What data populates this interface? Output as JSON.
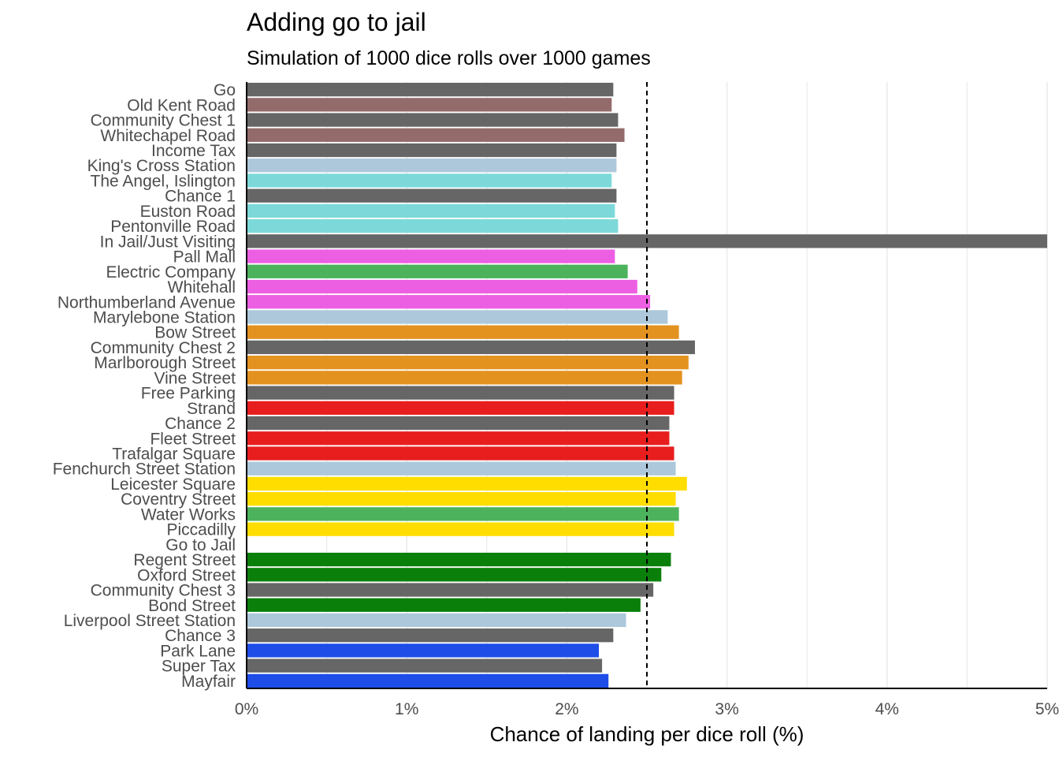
{
  "chart_data": {
    "type": "bar",
    "orientation": "horizontal",
    "title": "Adding go to jail",
    "subtitle": "Simulation of 1000 dice rolls over 1000 games",
    "xlabel": "Chance of landing per dice roll (%)",
    "ylabel": "",
    "xlim": [
      0,
      5
    ],
    "x_ticks": [
      "0%",
      "1%",
      "2%",
      "3%",
      "4%",
      "5%"
    ],
    "x_tick_values": [
      0,
      1,
      2,
      3,
      4,
      5
    ],
    "reference_line": {
      "value": 2.5,
      "style": "dashed"
    },
    "grid": "vertical",
    "legend": "none",
    "categories": [
      "Go",
      "Old Kent Road",
      "Community Chest 1",
      "Whitechapel Road",
      "Income Tax",
      "King's Cross Station",
      "The Angel, Islington",
      "Chance 1",
      "Euston Road",
      "Pentonville Road",
      "In Jail/Just Visiting",
      "Pall Mall",
      "Electric Company",
      "Whitehall",
      "Northumberland Avenue",
      "Marylebone Station",
      "Bow Street",
      "Community Chest 2",
      "Marlborough Street",
      "Vine Street",
      "Free Parking",
      "Strand",
      "Chance 2",
      "Fleet Street",
      "Trafalgar Square",
      "Fenchurch Street Station",
      "Leicester Square",
      "Coventry Street",
      "Water Works",
      "Piccadilly",
      "Go to Jail",
      "Regent Street",
      "Oxford Street",
      "Community Chest 3",
      "Bond Street",
      "Liverpool Street Station",
      "Chance 3",
      "Park Lane",
      "Super Tax",
      "Mayfair"
    ],
    "values": [
      2.29,
      2.28,
      2.32,
      2.36,
      2.31,
      2.31,
      2.28,
      2.31,
      2.3,
      2.32,
      5.0,
      2.3,
      2.38,
      2.44,
      2.52,
      2.63,
      2.7,
      2.8,
      2.76,
      2.72,
      2.67,
      2.67,
      2.64,
      2.64,
      2.67,
      2.68,
      2.75,
      2.68,
      2.7,
      2.67,
      0,
      2.65,
      2.59,
      2.54,
      2.46,
      2.37,
      2.29,
      2.2,
      2.22,
      2.26
    ],
    "colors": [
      "#666666",
      "#946b6b",
      "#666666",
      "#946b6b",
      "#666666",
      "#adc8db",
      "#7dd9d9",
      "#666666",
      "#7dd9d9",
      "#7dd9d9",
      "#666666",
      "#ec5fe3",
      "#4cb35c",
      "#ec5fe3",
      "#ec5fe3",
      "#adc8db",
      "#e39220",
      "#666666",
      "#e39220",
      "#e39220",
      "#666666",
      "#e81e1e",
      "#666666",
      "#e81e1e",
      "#e81e1e",
      "#adc8db",
      "#ffdd00",
      "#ffdd00",
      "#4cb35c",
      "#ffdd00",
      "#666666",
      "#0a7f0a",
      "#0a7f0a",
      "#666666",
      "#0a7f0a",
      "#adc8db",
      "#666666",
      "#1e4de8",
      "#666666",
      "#1e4de8"
    ]
  }
}
